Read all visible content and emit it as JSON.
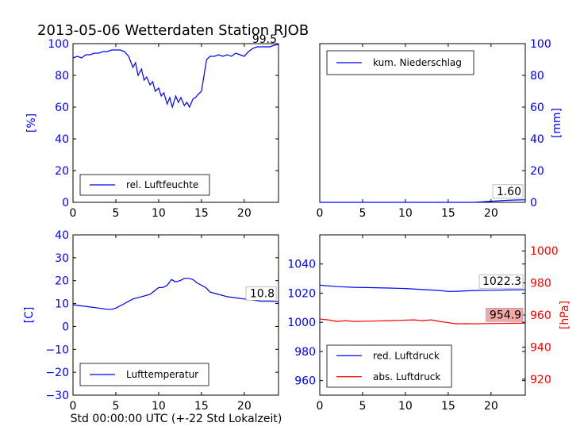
{
  "title": "2013-05-06 Wetterdaten Station RJOB",
  "xlabel": "Std 00:00:00 UTC (+-22 Std Lokalzeit)",
  "colors": {
    "blue": "#0000ff",
    "red": "#ff0000",
    "box_red": "#f4a7a7"
  },
  "chart_data": [
    {
      "type": "line",
      "ylabel": "[%]",
      "xlim": [
        0,
        24
      ],
      "ylim": [
        0,
        100
      ],
      "xticks": [
        "0",
        "5",
        "10",
        "15",
        "20"
      ],
      "yticks": [
        "0",
        "20",
        "40",
        "60",
        "80",
        "100"
      ],
      "legend": "lower-left",
      "last_label": "99.5",
      "series": [
        {
          "name": "rel. Luftfeuchte",
          "color": "#0000ff",
          "x": [
            0,
            0.5,
            1,
            1.5,
            2,
            2.5,
            3,
            3.5,
            4,
            4.5,
            5,
            5.5,
            6,
            6.5,
            7,
            7.3,
            7.6,
            8,
            8.3,
            8.6,
            9,
            9.3,
            9.6,
            10,
            10.3,
            10.6,
            11,
            11.3,
            11.6,
            12,
            12.3,
            12.6,
            13,
            13.3,
            13.6,
            14,
            14.3,
            14.6,
            15,
            15.3,
            15.6,
            16,
            16.5,
            17,
            17.5,
            18,
            18.5,
            19,
            19.5,
            20,
            20.5,
            21,
            21.5,
            22,
            22.5,
            23,
            23.5,
            24
          ],
          "values": [
            91,
            92,
            91,
            93,
            93,
            94,
            94,
            95,
            95,
            96,
            96,
            96,
            95,
            92,
            85,
            88,
            80,
            84,
            77,
            79,
            74,
            76,
            70,
            72,
            67,
            69,
            62,
            66,
            60,
            67,
            63,
            66,
            61,
            63,
            60,
            65,
            66,
            68,
            70,
            80,
            90,
            92,
            92,
            93,
            92,
            93,
            92,
            94,
            93,
            92,
            95,
            97,
            98,
            98,
            98,
            98,
            99,
            99.5
          ]
        }
      ]
    },
    {
      "type": "line",
      "ylabel": "[mm]",
      "xlim": [
        0,
        24
      ],
      "ylim": [
        0,
        100
      ],
      "xticks": [
        "0",
        "5",
        "10",
        "15",
        "20"
      ],
      "yticks": [
        "0",
        "20",
        "40",
        "60",
        "80",
        "100"
      ],
      "legend": "upper-left",
      "last_label": "1.60",
      "series": [
        {
          "name": "kum. Niederschlag",
          "color": "#0000ff",
          "x": [
            0,
            18,
            19,
            20,
            21,
            22,
            23,
            24
          ],
          "values": [
            0,
            0,
            0.3,
            0.7,
            1.0,
            1.3,
            1.5,
            1.6
          ]
        }
      ]
    },
    {
      "type": "line",
      "ylabel": "[C]",
      "xlim": [
        0,
        24
      ],
      "ylim": [
        -30,
        40
      ],
      "xticks": [
        "0",
        "5",
        "10",
        "15",
        "20"
      ],
      "yticks": [
        "−30",
        "−20",
        "−10",
        "0",
        "10",
        "20",
        "30",
        "40"
      ],
      "legend": "lower-left",
      "last_label": "10.8",
      "series": [
        {
          "name": "Lufttemperatur",
          "color": "#0000ff",
          "x": [
            0,
            1,
            2,
            3,
            4,
            4.5,
            5,
            6,
            7,
            8,
            9,
            10,
            10.5,
            11,
            11.5,
            12,
            12.5,
            13,
            13.5,
            14,
            14.5,
            15,
            15.5,
            16,
            17,
            18,
            19,
            20,
            21,
            22,
            23,
            24
          ],
          "values": [
            9.5,
            9,
            8.5,
            8,
            7.5,
            7.5,
            8,
            10,
            12,
            13,
            14,
            17,
            17,
            18,
            20.5,
            19.5,
            20,
            21,
            21,
            20.5,
            19,
            18,
            17,
            15,
            14,
            13,
            12.5,
            12,
            11.5,
            11,
            11,
            10.8
          ]
        }
      ]
    },
    {
      "type": "line",
      "ylabel": "[hPa]",
      "xlim": [
        0,
        24
      ],
      "ylim": [
        950,
        1060
      ],
      "ylim_right": [
        910,
        1010
      ],
      "xticks": [
        "0",
        "5",
        "10",
        "15",
        "20"
      ],
      "yticks": [
        "960",
        "980",
        "1000",
        "1020",
        "1040"
      ],
      "yticks_right": [
        "920",
        "940",
        "960",
        "980",
        "1000"
      ],
      "legend": "lower-left",
      "series": [
        {
          "name": "red. Luftdruck",
          "color": "#0000ff",
          "axis": "left",
          "last_label": "1022.3",
          "x": [
            0,
            2,
            4,
            6,
            8,
            10,
            12,
            14,
            15,
            16,
            18,
            20,
            22,
            24
          ],
          "values": [
            1025.5,
            1024.5,
            1024,
            1023.8,
            1023.5,
            1023.2,
            1022.5,
            1021.8,
            1021.2,
            1021.3,
            1021.8,
            1022,
            1022.2,
            1022.3
          ]
        },
        {
          "name": "abs. Luftdruck",
          "color": "#ff0000",
          "axis": "right",
          "last_label": "954.9",
          "x": [
            0,
            1,
            2,
            3,
            4,
            6,
            8,
            10,
            11,
            12,
            13,
            14,
            15,
            16,
            17,
            18,
            20,
            22,
            24
          ],
          "values": [
            957.5,
            957,
            956,
            956.5,
            956,
            956.2,
            956.5,
            956.8,
            957,
            956.5,
            957,
            956,
            955.2,
            954.5,
            954.6,
            954.5,
            954.7,
            954.8,
            954.9
          ]
        }
      ]
    }
  ]
}
